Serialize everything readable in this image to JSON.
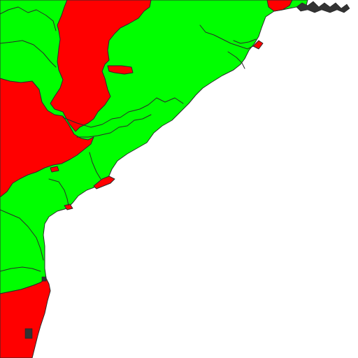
{
  "map": {
    "colors": {
      "sea": "#ffffff",
      "region_green": "#00ff00",
      "region_red": "#ff0000",
      "boundary": "#2a2a2a"
    }
  }
}
